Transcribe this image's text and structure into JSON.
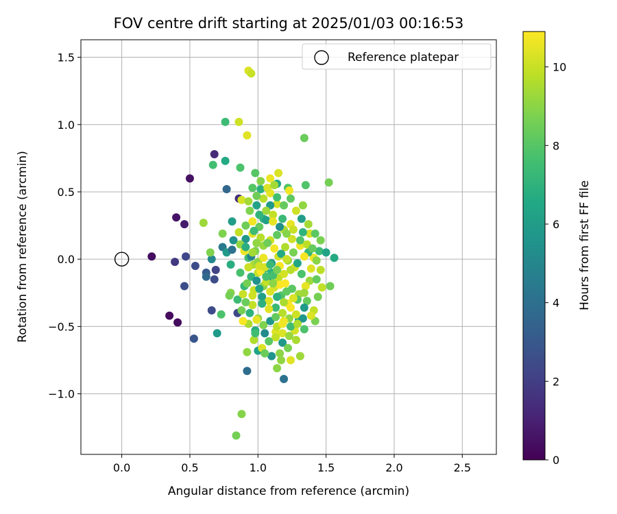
{
  "chart_data": {
    "type": "scatter",
    "title": "FOV centre drift starting at 2025/01/03 00:16:53",
    "xlabel": "Angular distance from reference (arcmin)",
    "ylabel": "Rotation from reference (arcmin)",
    "xlim": [
      -0.3,
      2.75
    ],
    "ylim": [
      -1.45,
      1.63
    ],
    "xticks": [
      "0.0",
      "0.5",
      "1.0",
      "1.5",
      "2.0",
      "2.5"
    ],
    "xtick_values": [
      0.0,
      0.5,
      1.0,
      1.5,
      2.0,
      2.5
    ],
    "yticks": [
      "−1.0",
      "−0.5",
      "0.0",
      "0.5",
      "1.0",
      "1.5"
    ],
    "ytick_values": [
      -1.0,
      -0.5,
      0.0,
      0.5,
      1.0,
      1.5
    ],
    "grid": true,
    "legend": {
      "placement": "top-right",
      "entries": [
        {
          "label": "Reference platepar",
          "marker": "open-circle"
        }
      ]
    },
    "reference_point": {
      "x": 0.0,
      "y": 0.0
    },
    "colorbar": {
      "label": "Hours from first FF file",
      "min": 0,
      "max": 10.9,
      "ticks": [
        "0",
        "2",
        "4",
        "6",
        "8",
        "10"
      ],
      "tick_values": [
        0,
        2,
        4,
        6,
        8,
        10
      ],
      "colormap": "viridis"
    },
    "points": [
      [
        0.22,
        0.02,
        0.4
      ],
      [
        0.35,
        -0.42,
        0.3
      ],
      [
        0.41,
        -0.47,
        0.3
      ],
      [
        0.4,
        0.31,
        0.6
      ],
      [
        0.46,
        0.26,
        0.8
      ],
      [
        0.5,
        0.6,
        0.5
      ],
      [
        0.39,
        -0.02,
        1.8
      ],
      [
        0.47,
        0.02,
        2.3
      ],
      [
        0.46,
        -0.2,
        2.6
      ],
      [
        0.54,
        -0.05,
        2.5
      ],
      [
        0.53,
        -0.59,
        2.9
      ],
      [
        0.62,
        -0.1,
        3.1
      ],
      [
        0.62,
        -0.13,
        3.7
      ],
      [
        0.68,
        -0.15,
        2.5
      ],
      [
        0.69,
        -0.08,
        2.2
      ],
      [
        0.66,
        -0.38,
        2.5
      ],
      [
        0.68,
        0.78,
        1.3
      ],
      [
        0.77,
        0.52,
        3.6
      ],
      [
        0.74,
        0.09,
        4.4
      ],
      [
        0.66,
        0.0,
        5.0
      ],
      [
        0.7,
        -0.55,
        5.9
      ],
      [
        0.85,
        -0.4,
        2.4
      ],
      [
        0.86,
        0.45,
        1.4
      ],
      [
        0.92,
        -0.83,
        3.9
      ],
      [
        1.19,
        -0.89,
        4.1
      ],
      [
        0.76,
        1.02,
        7.4
      ],
      [
        0.67,
        0.7,
        7.6
      ],
      [
        0.76,
        0.73,
        6.6
      ],
      [
        0.87,
        0.68,
        7.8
      ],
      [
        0.74,
        0.19,
        8.8
      ],
      [
        0.6,
        0.27,
        9.3
      ],
      [
        0.65,
        0.05,
        8.8
      ],
      [
        0.73,
        -0.41,
        7.8
      ],
      [
        0.8,
        -0.25,
        8.9
      ],
      [
        0.86,
        1.02,
        10.1
      ],
      [
        0.92,
        0.92,
        10.4
      ],
      [
        0.93,
        1.4,
        10.3
      ],
      [
        0.95,
        1.38,
        10.0
      ],
      [
        0.84,
        -1.31,
        8.6
      ],
      [
        0.88,
        -1.15,
        8.9
      ],
      [
        0.92,
        -0.69,
        9.1
      ],
      [
        1.34,
        0.9,
        8.4
      ],
      [
        1.52,
        0.57,
        8.6
      ],
      [
        1.56,
        0.01,
        6.6
      ],
      [
        1.53,
        -0.2,
        8.5
      ],
      [
        1.47,
        -0.21,
        9.9
      ],
      [
        1.42,
        -0.46,
        8.7
      ],
      [
        1.41,
        -0.38,
        9.9
      ],
      [
        1.31,
        -0.72,
        9.3
      ],
      [
        1.24,
        -0.75,
        10.4
      ],
      [
        1.17,
        -0.75,
        9.1
      ],
      [
        1.14,
        -0.81,
        9.0
      ],
      [
        1.0,
        -0.68,
        6.3
      ],
      [
        0.97,
        -0.6,
        9.6
      ],
      [
        0.88,
        0.44,
        10.2
      ],
      [
        0.93,
        0.43,
        9.4
      ],
      [
        0.98,
        0.64,
        8.0
      ],
      [
        1.02,
        0.58,
        8.9
      ],
      [
        1.09,
        0.6,
        10.6
      ],
      [
        1.15,
        0.64,
        10.3
      ],
      [
        1.14,
        0.56,
        6.6
      ],
      [
        1.22,
        0.53,
        7.9
      ],
      [
        1.35,
        0.55,
        7.9
      ],
      [
        1.23,
        0.51,
        10.7
      ],
      [
        1.24,
        0.45,
        8.2
      ],
      [
        1.33,
        0.4,
        9.1
      ],
      [
        1.14,
        0.41,
        10.2
      ],
      [
        1.09,
        0.4,
        5.9
      ],
      [
        1.04,
        0.3,
        7.0
      ],
      [
        0.81,
        0.28,
        6.0
      ],
      [
        0.82,
        0.14,
        5.5
      ],
      [
        0.77,
        0.05,
        5.9
      ],
      [
        0.81,
        0.07,
        4.1
      ],
      [
        0.8,
        -0.04,
        6.8
      ],
      [
        0.87,
        -0.1,
        7.7
      ],
      [
        0.79,
        -0.27,
        8.6
      ],
      [
        0.9,
        -0.2,
        7.2
      ],
      [
        0.88,
        -0.38,
        8.6
      ],
      [
        0.96,
        -0.34,
        9.9
      ],
      [
        1.0,
        -0.44,
        9.1
      ],
      [
        1.05,
        -0.55,
        5.2
      ],
      [
        1.13,
        -0.54,
        10.4
      ],
      [
        1.18,
        -0.55,
        10.3
      ],
      [
        1.27,
        -0.53,
        10.2
      ],
      [
        1.3,
        -0.45,
        6.8
      ],
      [
        1.33,
        -0.44,
        5.7
      ],
      [
        1.36,
        -0.31,
        8.3
      ],
      [
        1.38,
        -0.16,
        9.3
      ],
      [
        1.43,
        -0.15,
        8.3
      ],
      [
        1.41,
        0.01,
        10.6
      ],
      [
        1.45,
        0.06,
        7.4
      ],
      [
        1.5,
        0.05,
        6.3
      ],
      [
        1.46,
        0.14,
        8.7
      ],
      [
        1.38,
        0.19,
        10.2
      ],
      [
        1.33,
        0.2,
        7.0
      ],
      [
        1.25,
        0.15,
        10.1
      ],
      [
        1.2,
        0.09,
        9.6
      ],
      [
        1.15,
        0.02,
        10.1
      ],
      [
        1.1,
        -0.03,
        5.9
      ],
      [
        1.05,
        -0.07,
        6.8
      ],
      [
        1.0,
        -0.1,
        9.9
      ],
      [
        0.95,
        -0.13,
        7.1
      ],
      [
        0.92,
        -0.18,
        8.6
      ],
      [
        0.97,
        -0.23,
        10.0
      ],
      [
        1.03,
        -0.28,
        6.1
      ],
      [
        1.08,
        -0.31,
        10.3
      ],
      [
        1.13,
        -0.36,
        7.3
      ],
      [
        1.18,
        -0.4,
        9.7
      ],
      [
        1.23,
        -0.44,
        9.1
      ],
      [
        1.28,
        -0.41,
        10.1
      ],
      [
        1.22,
        -0.33,
        10.8
      ],
      [
        1.17,
        -0.27,
        7.9
      ],
      [
        1.12,
        -0.21,
        10.2
      ],
      [
        1.07,
        -0.15,
        6.5
      ],
      [
        1.02,
        -0.09,
        10.9
      ],
      [
        0.97,
        -0.04,
        9.5
      ],
      [
        0.93,
        0.01,
        7.5
      ],
      [
        0.98,
        0.06,
        8.8
      ],
      [
        1.04,
        0.1,
        9.2
      ],
      [
        1.09,
        0.14,
        10.0
      ],
      [
        1.14,
        0.18,
        8.2
      ],
      [
        1.19,
        0.22,
        9.6
      ],
      [
        1.24,
        0.26,
        10.5
      ],
      [
        1.18,
        0.3,
        7.3
      ],
      [
        1.11,
        0.33,
        9.9
      ],
      [
        1.06,
        0.29,
        6.2
      ],
      [
        1.01,
        0.24,
        8.3
      ],
      [
        0.96,
        0.19,
        10.4
      ],
      [
        0.91,
        0.15,
        5.8
      ],
      [
        0.87,
        0.11,
        9.1
      ],
      [
        0.9,
        0.06,
        10.6
      ],
      [
        0.95,
        0.02,
        4.8
      ],
      [
        1.0,
        -0.02,
        9.0
      ],
      [
        1.05,
        -0.06,
        10.2
      ],
      [
        1.1,
        -0.1,
        7.0
      ],
      [
        1.15,
        -0.14,
        9.8
      ],
      [
        1.2,
        -0.18,
        10.9
      ],
      [
        1.25,
        -0.22,
        8.1
      ],
      [
        1.3,
        -0.26,
        9.4
      ],
      [
        1.35,
        -0.2,
        10.5
      ],
      [
        1.32,
        -0.11,
        7.8
      ],
      [
        1.27,
        -0.06,
        10.1
      ],
      [
        1.22,
        -0.01,
        9.2
      ],
      [
        1.17,
        0.04,
        6.6
      ],
      [
        1.12,
        0.08,
        10.7
      ],
      [
        1.07,
        0.12,
        8.5
      ],
      [
        1.02,
        0.16,
        9.7
      ],
      [
        0.97,
        0.21,
        7.4
      ],
      [
        0.93,
        -0.06,
        10.0
      ],
      [
        0.99,
        -0.16,
        5.5
      ],
      [
        1.04,
        -0.2,
        8.9
      ],
      [
        1.09,
        -0.24,
        10.3
      ],
      [
        1.14,
        -0.28,
        6.9
      ],
      [
        1.19,
        -0.32,
        9.5
      ],
      [
        1.24,
        -0.36,
        10.8
      ],
      [
        1.29,
        -0.3,
        8.0
      ],
      [
        1.34,
        -0.25,
        9.3
      ],
      [
        1.39,
        -0.07,
        10.4
      ],
      [
        1.43,
        -0.01,
        9.0
      ],
      [
        1.37,
        0.05,
        7.2
      ],
      [
        1.31,
        0.1,
        10.6
      ],
      [
        1.26,
        0.05,
        8.7
      ],
      [
        1.21,
        0.0,
        10.0
      ],
      [
        1.16,
        -0.05,
        10.8
      ],
      [
        1.11,
        -0.12,
        7.6
      ],
      [
        1.06,
        -0.17,
        9.9
      ],
      [
        1.01,
        -0.22,
        6.4
      ],
      [
        0.96,
        -0.27,
        10.1
      ],
      [
        0.91,
        -0.32,
        8.4
      ],
      [
        0.94,
        -0.4,
        7.0
      ],
      [
        0.99,
        -0.45,
        10.5
      ],
      [
        1.04,
        -0.49,
        8.8
      ],
      [
        1.09,
        -0.46,
        5.7
      ],
      [
        1.14,
        -0.5,
        9.8
      ],
      [
        1.19,
        -0.46,
        10.6
      ],
      [
        1.24,
        -0.5,
        7.5
      ],
      [
        1.29,
        -0.48,
        9.6
      ],
      [
        1.34,
        -0.36,
        5.9
      ],
      [
        1.26,
        -0.29,
        10.3
      ],
      [
        1.21,
        -0.24,
        8.2
      ],
      [
        1.16,
        -0.19,
        10.9
      ],
      [
        1.11,
        -0.18,
        9.0
      ],
      [
        1.06,
        -0.13,
        7.7
      ],
      [
        1.01,
        -0.05,
        10.2
      ],
      [
        0.96,
        0.05,
        9.4
      ],
      [
        0.91,
        0.09,
        6.8
      ],
      [
        0.86,
        0.2,
        9.9
      ],
      [
        0.91,
        0.25,
        8.5
      ],
      [
        0.96,
        0.28,
        10.7
      ],
      [
        1.01,
        0.33,
        7.1
      ],
      [
        1.06,
        0.36,
        9.3
      ],
      [
        1.11,
        0.28,
        10.5
      ],
      [
        1.16,
        0.24,
        5.3
      ],
      [
        1.21,
        0.19,
        8.9
      ],
      [
        1.26,
        0.22,
        10.0
      ],
      [
        1.31,
        0.14,
        7.9
      ],
      [
        1.36,
        0.11,
        9.8
      ],
      [
        1.4,
        0.08,
        8.3
      ],
      [
        1.34,
        0.02,
        10.8
      ],
      [
        1.29,
        -0.03,
        6.5
      ],
      [
        1.24,
        -0.08,
        9.7
      ],
      [
        1.19,
        -0.11,
        10.2
      ],
      [
        1.14,
        -0.08,
        8.6
      ],
      [
        1.09,
        -0.04,
        7.3
      ],
      [
        1.04,
        0.01,
        10.6
      ],
      [
        0.99,
        0.12,
        9.1
      ],
      [
        1.03,
        -0.33,
        6.9
      ],
      [
        1.08,
        -0.37,
        10.4
      ],
      [
        1.13,
        -0.43,
        8.3
      ],
      [
        1.18,
        -0.48,
        10.7
      ],
      [
        1.23,
        -0.57,
        9.2
      ],
      [
        1.18,
        -0.62,
        5.8
      ],
      [
        1.13,
        -0.58,
        9.9
      ],
      [
        1.08,
        -0.61,
        8.1
      ],
      [
        1.03,
        -0.66,
        10.3
      ],
      [
        0.98,
        -0.53,
        6.7
      ],
      [
        0.93,
        -0.48,
        9.5
      ],
      [
        0.89,
        -0.46,
        10.8
      ],
      [
        0.85,
        -0.3,
        7.4
      ],
      [
        0.89,
        -0.26,
        10.0
      ],
      [
        0.94,
        0.36,
        8.8
      ],
      [
        0.99,
        0.4,
        6.3
      ],
      [
        1.04,
        0.45,
        9.7
      ],
      [
        1.09,
        0.49,
        10.5
      ],
      [
        1.14,
        0.46,
        7.6
      ],
      [
        1.19,
        0.4,
        8.3
      ],
      [
        1.28,
        0.36,
        10.1
      ],
      [
        1.32,
        0.3,
        6.0
      ],
      [
        1.37,
        0.26,
        9.4
      ],
      [
        1.42,
        0.19,
        8.1
      ],
      [
        1.46,
        -0.08,
        9.8
      ],
      [
        1.44,
        -0.28,
        8.6
      ],
      [
        1.39,
        -0.42,
        10.3
      ],
      [
        1.34,
        -0.52,
        7.8
      ],
      [
        1.28,
        -0.6,
        9.5
      ],
      [
        1.22,
        -0.66,
        8.7
      ],
      [
        1.16,
        -0.7,
        9.0
      ],
      [
        1.1,
        -0.72,
        5.6
      ],
      [
        1.05,
        -0.7,
        8.4
      ],
      [
        0.98,
        -0.55,
        7.5
      ],
      [
        1.02,
        0.52,
        6.9
      ],
      [
        0.96,
        0.53,
        8.0
      ],
      [
        0.99,
        0.47,
        8.5
      ],
      [
        1.07,
        0.53,
        10.3
      ],
      [
        1.12,
        0.55,
        9.4
      ]
    ]
  }
}
